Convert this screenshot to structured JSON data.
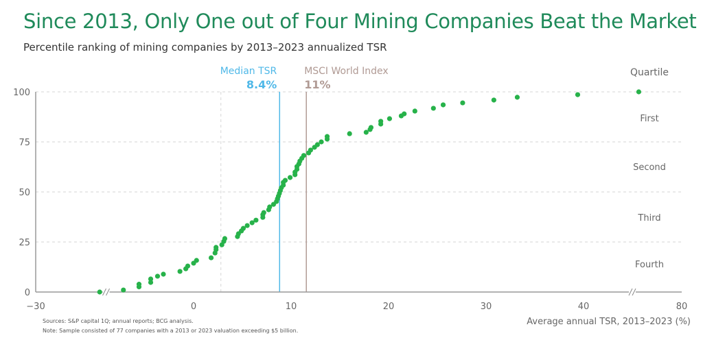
{
  "title": "Since 2013, Only One out of Four Mining Companies Beat the Market",
  "subtitle": "Percentile ranking of mining companies by 2013–2023 annualized TSR",
  "footnotes": {
    "sources": "Sources: S&P capital 1Q; annual reports; BCG analysis.",
    "note": "Note: Sample consisted of 77 companies with a 2013 or 2023 valuation exceeding $5 billion."
  },
  "colors": {
    "title": "#1f8a5a",
    "dots": "#27b24a",
    "median": "#4fb8e8",
    "msci": "#b09a94"
  },
  "chart_data": {
    "type": "scatter",
    "xlabel": "Average annual TSR, 2013–2023 (%)",
    "ylabel": "",
    "x_ticks": [
      "−30",
      "0",
      "10",
      "20",
      "30",
      "40",
      "80"
    ],
    "y_ticks": [
      "0",
      "25",
      "50",
      "75",
      "100"
    ],
    "xlim": [
      -30,
      80
    ],
    "ylim": [
      0,
      100
    ],
    "x_axis_breaks": [
      [
        -30,
        -9
      ],
      [
        45,
        80
      ]
    ],
    "grid": "horizontal dashed",
    "quartile_header": "Quartile",
    "quartiles": [
      "First",
      "Second",
      "Third",
      "Fourth"
    ],
    "reference_lines": [
      {
        "label": "Median TSR",
        "value_label": "8.4%",
        "x": 8.4,
        "color": "#4fb8e8"
      },
      {
        "label": "MSCI World Index",
        "value_label": "11%",
        "x": 11,
        "color": "#b09a94"
      }
    ],
    "points": [
      [
        -11,
        0
      ],
      [
        -7.2,
        1.0
      ],
      [
        -5.6,
        2.6
      ],
      [
        -5.6,
        3.9
      ],
      [
        -4.4,
        4.8
      ],
      [
        -4.4,
        6.5
      ],
      [
        -3.7,
        7.9
      ],
      [
        -3.1,
        8.9
      ],
      [
        -1.4,
        10.3
      ],
      [
        -0.8,
        11.6
      ],
      [
        -0.6,
        13.0
      ],
      [
        0,
        14.4
      ],
      [
        0.3,
        15.8
      ],
      [
        1.8,
        17.1
      ],
      [
        2.2,
        19.5
      ],
      [
        2.3,
        21.2
      ],
      [
        2.3,
        22.3
      ],
      [
        2.9,
        23.6
      ],
      [
        3.1,
        25.3
      ],
      [
        3.2,
        26.7
      ],
      [
        4.5,
        27.7
      ],
      [
        4.6,
        29.1
      ],
      [
        4.9,
        30.5
      ],
      [
        5.1,
        31.8
      ],
      [
        5.5,
        33.2
      ],
      [
        6.0,
        34.6
      ],
      [
        6.4,
        35.9
      ],
      [
        7.1,
        37.3
      ],
      [
        7.1,
        38.7
      ],
      [
        7.2,
        39.7
      ],
      [
        7.7,
        41.1
      ],
      [
        7.8,
        42.5
      ],
      [
        8.2,
        43.8
      ],
      [
        8.5,
        45.2
      ],
      [
        8.6,
        46.6
      ],
      [
        8.7,
        47.9
      ],
      [
        8.8,
        49.3
      ],
      [
        8.9,
        50.7
      ],
      [
        9.0,
        52.1
      ],
      [
        9.2,
        53.4
      ],
      [
        9.2,
        54.8
      ],
      [
        9.4,
        55.8
      ],
      [
        9.9,
        57.2
      ],
      [
        10.4,
        58.6
      ],
      [
        10.4,
        59.9
      ],
      [
        10.6,
        61.3
      ],
      [
        10.6,
        62.7
      ],
      [
        10.8,
        64.0
      ],
      [
        10.9,
        65.4
      ],
      [
        11.1,
        66.8
      ],
      [
        11.3,
        68.2
      ],
      [
        11.8,
        69.5
      ],
      [
        12.0,
        70.9
      ],
      [
        12.4,
        72.3
      ],
      [
        12.7,
        73.6
      ],
      [
        13.1,
        75.0
      ],
      [
        13.7,
        76.4
      ],
      [
        13.7,
        77.7
      ],
      [
        16.0,
        79.1
      ],
      [
        17.7,
        79.8
      ],
      [
        18.1,
        81.2
      ],
      [
        18.2,
        82.2
      ],
      [
        19.2,
        83.9
      ],
      [
        19.2,
        85.3
      ],
      [
        20.1,
        86.6
      ],
      [
        21.3,
        88.0
      ],
      [
        21.6,
        89.0
      ],
      [
        22.7,
        90.4
      ],
      [
        24.6,
        91.8
      ],
      [
        25.6,
        93.5
      ],
      [
        27.6,
        94.5
      ],
      [
        30.8,
        95.9
      ],
      [
        33.2,
        97.3
      ],
      [
        39.4,
        98.6
      ],
      [
        50,
        100
      ]
    ]
  }
}
